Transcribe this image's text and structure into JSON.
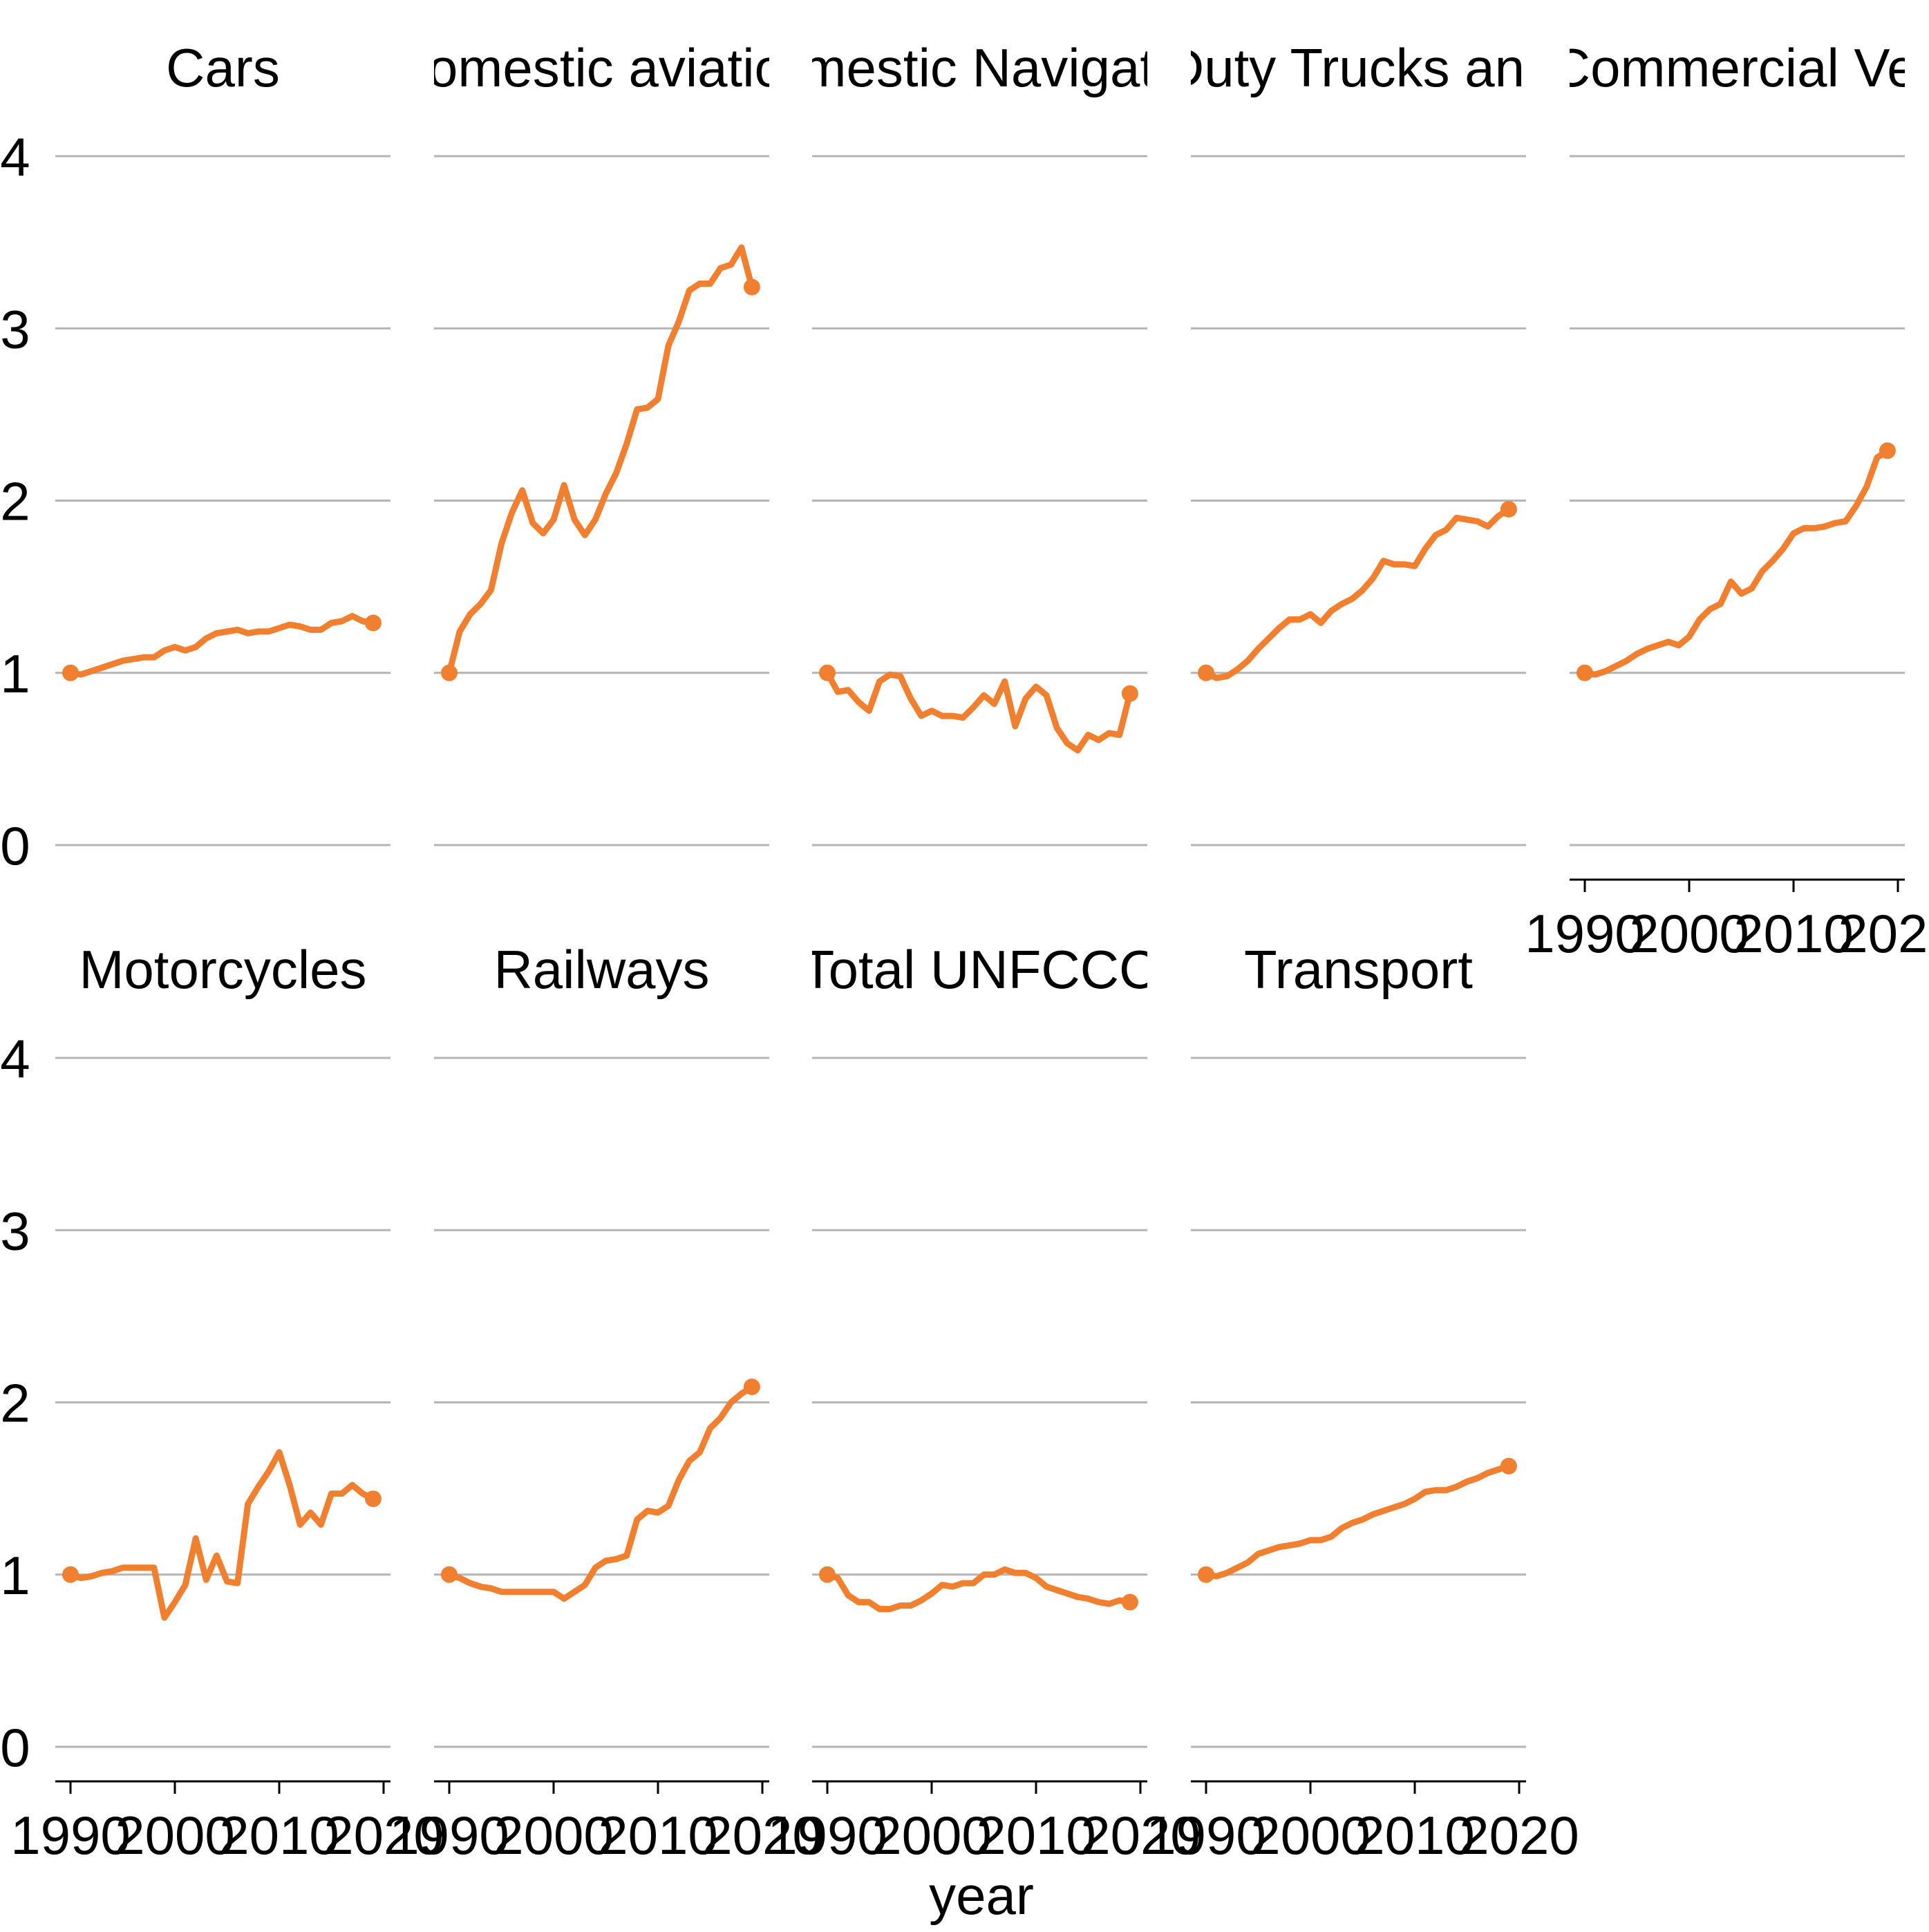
{
  "chart_data": {
    "type": "line",
    "layout": "small-multiples",
    "xlabel": "year",
    "ylabel": "",
    "xlim": [
      1990,
      2020
    ],
    "ylim": [
      0,
      4
    ],
    "x_ticks": [
      "1990",
      "2000",
      "2010",
      "2020"
    ],
    "y_ticks": [
      "0",
      "1",
      "2",
      "3",
      "4"
    ],
    "grid": "horizontal",
    "line_color": "#f07f2f",
    "x": [
      1990,
      1991,
      1992,
      1993,
      1994,
      1995,
      1996,
      1997,
      1998,
      1999,
      2000,
      2001,
      2002,
      2003,
      2004,
      2005,
      2006,
      2007,
      2008,
      2009,
      2010,
      2011,
      2012,
      2013,
      2014,
      2015,
      2016,
      2017,
      2018,
      2019
    ],
    "panels": [
      {
        "title": "Cars",
        "values": [
          1.0,
          0.99,
          1.01,
          1.03,
          1.05,
          1.07,
          1.08,
          1.09,
          1.09,
          1.13,
          1.15,
          1.13,
          1.15,
          1.2,
          1.23,
          1.24,
          1.25,
          1.23,
          1.24,
          1.24,
          1.26,
          1.28,
          1.27,
          1.25,
          1.25,
          1.29,
          1.3,
          1.33,
          1.3,
          1.29
        ]
      },
      {
        "title": "Domestic aviation",
        "values": [
          1.0,
          1.24,
          1.34,
          1.4,
          1.48,
          1.75,
          1.93,
          2.06,
          1.87,
          1.81,
          1.89,
          2.09,
          1.89,
          1.8,
          1.89,
          2.04,
          2.16,
          2.33,
          2.53,
          2.54,
          2.59,
          2.9,
          3.04,
          3.22,
          3.26,
          3.26,
          3.35,
          3.37,
          3.47,
          3.24
        ]
      },
      {
        "title": "Domestic Navigation",
        "values": [
          1.0,
          0.89,
          0.9,
          0.83,
          0.78,
          0.95,
          0.99,
          0.98,
          0.85,
          0.75,
          0.78,
          0.75,
          0.75,
          0.74,
          0.8,
          0.87,
          0.82,
          0.95,
          0.69,
          0.85,
          0.92,
          0.87,
          0.68,
          0.59,
          0.55,
          0.64,
          0.61,
          0.65,
          0.64,
          0.88
        ]
      },
      {
        "title": "Heavy Duty Trucks and Buses",
        "values": [
          1.0,
          0.97,
          0.98,
          1.02,
          1.07,
          1.14,
          1.2,
          1.26,
          1.31,
          1.31,
          1.34,
          1.29,
          1.36,
          1.4,
          1.43,
          1.48,
          1.55,
          1.65,
          1.63,
          1.63,
          1.62,
          1.72,
          1.8,
          1.83,
          1.9,
          1.89,
          1.88,
          1.85,
          1.91,
          1.95
        ]
      },
      {
        "title": "Light Commercial Vehicles",
        "values": [
          1.0,
          0.99,
          1.01,
          1.04,
          1.07,
          1.11,
          1.14,
          1.16,
          1.18,
          1.16,
          1.21,
          1.31,
          1.37,
          1.4,
          1.53,
          1.46,
          1.49,
          1.59,
          1.65,
          1.72,
          1.81,
          1.84,
          1.84,
          1.85,
          1.87,
          1.88,
          1.97,
          2.08,
          2.25,
          2.29
        ]
      },
      {
        "title": "Motorcycles",
        "values": [
          1.0,
          0.98,
          0.99,
          1.01,
          1.02,
          1.04,
          1.04,
          1.04,
          1.04,
          0.75,
          0.84,
          0.94,
          1.21,
          0.97,
          1.11,
          0.96,
          0.95,
          1.41,
          1.51,
          1.6,
          1.71,
          1.52,
          1.29,
          1.36,
          1.29,
          1.47,
          1.47,
          1.52,
          1.47,
          1.44
        ]
      },
      {
        "title": "Railways",
        "values": [
          1.0,
          0.98,
          0.95,
          0.93,
          0.92,
          0.9,
          0.9,
          0.9,
          0.9,
          0.9,
          0.9,
          0.86,
          0.9,
          0.94,
          1.04,
          1.08,
          1.09,
          1.11,
          1.32,
          1.37,
          1.36,
          1.4,
          1.55,
          1.66,
          1.71,
          1.85,
          1.91,
          2.0,
          2.05,
          2.09
        ]
      },
      {
        "title": "Total UNFCCC",
        "values": [
          1.0,
          0.98,
          0.88,
          0.84,
          0.84,
          0.8,
          0.8,
          0.82,
          0.82,
          0.85,
          0.89,
          0.94,
          0.93,
          0.95,
          0.95,
          1.0,
          1.0,
          1.03,
          1.01,
          1.01,
          0.98,
          0.93,
          0.91,
          0.89,
          0.87,
          0.86,
          0.84,
          0.83,
          0.85,
          0.84
        ]
      },
      {
        "title": "Transport",
        "values": [
          1.0,
          0.99,
          1.01,
          1.04,
          1.07,
          1.12,
          1.14,
          1.16,
          1.17,
          1.18,
          1.2,
          1.2,
          1.22,
          1.27,
          1.3,
          1.32,
          1.35,
          1.37,
          1.39,
          1.41,
          1.44,
          1.48,
          1.49,
          1.49,
          1.51,
          1.54,
          1.56,
          1.59,
          1.61,
          1.63
        ]
      }
    ]
  }
}
